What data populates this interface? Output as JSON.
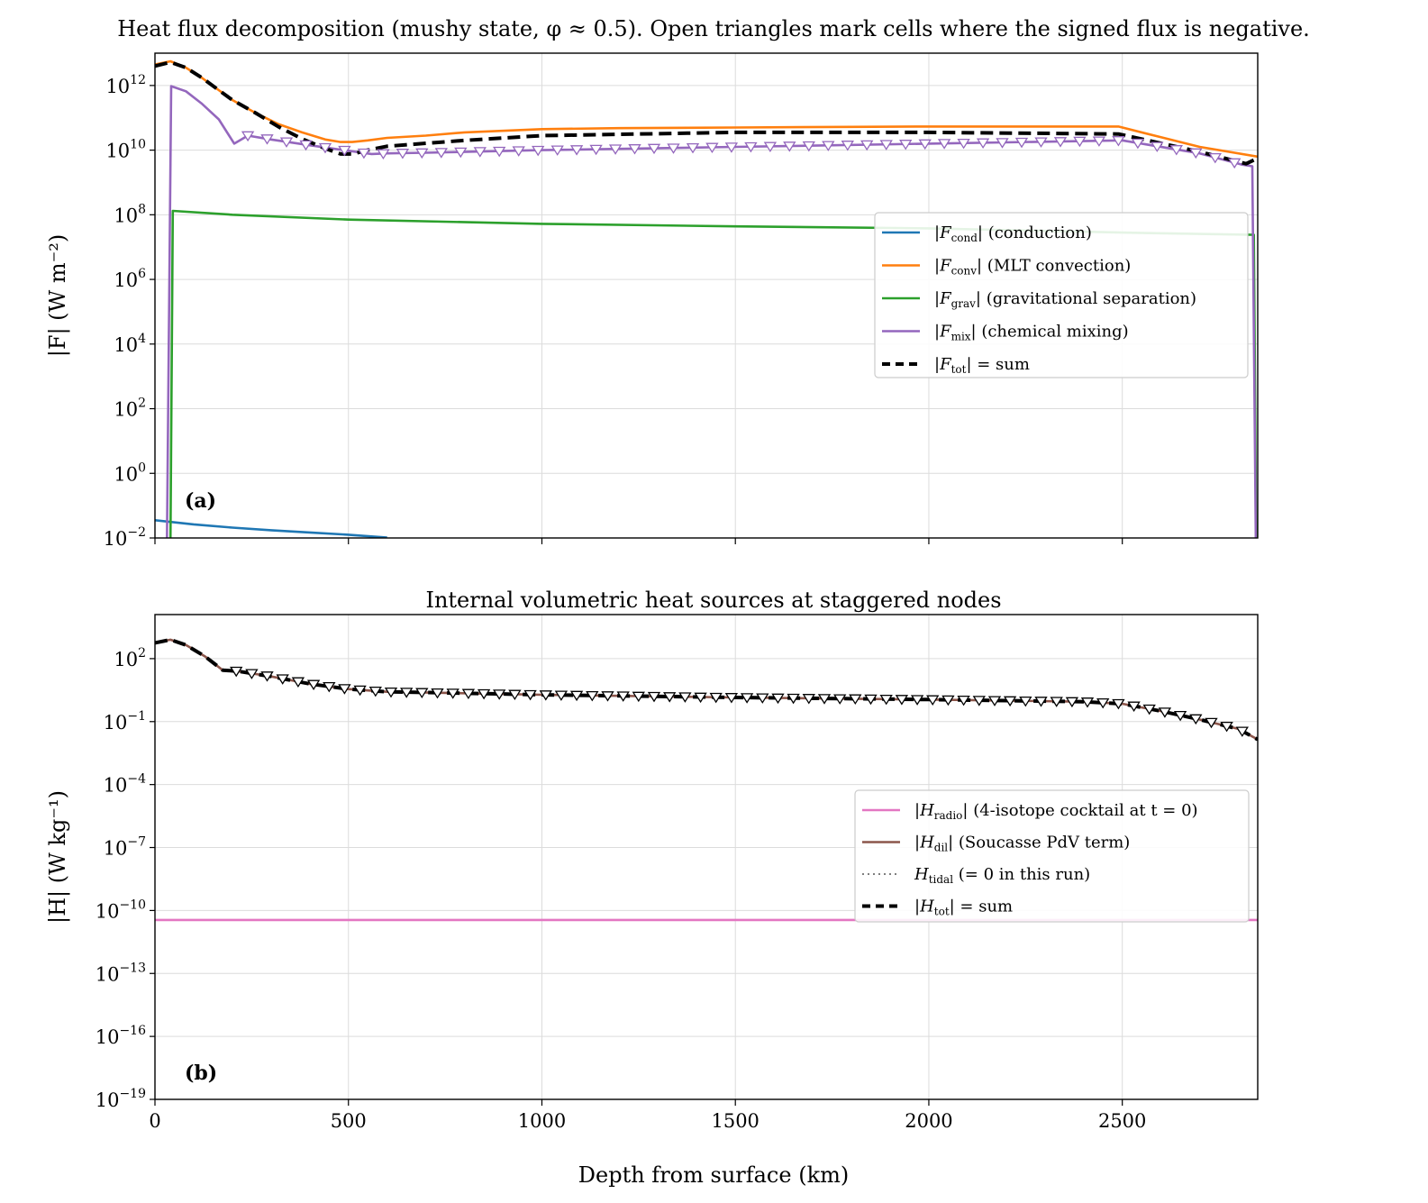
{
  "figure": {
    "title_a": "Heat flux decomposition  (mushy state, φ ≈ 0.5).  Open triangles mark cells where the signed flux is negative.",
    "title_b": "Internal volumetric heat sources at staggered nodes",
    "xlabel": "Depth from surface (km)",
    "colors": {
      "cond": "#1f77b4",
      "conv": "#ff7f0e",
      "grav": "#2ca02c",
      "mix": "#9467bd",
      "tot": "#000000",
      "radio": "#e377c2",
      "dil": "#8c564b",
      "tidal": "#7f7f7f"
    }
  },
  "chart_data": [
    {
      "type": "line",
      "panel_label": "(a)",
      "ylabel": "|F|  (W m⁻²)",
      "yscale": "log",
      "xlim": [
        0,
        2850
      ],
      "ylim_exp": [
        -2,
        13
      ],
      "xticks": [
        0,
        500,
        1000,
        1500,
        2000,
        2500
      ],
      "yticks_exp": [
        -2,
        0,
        2,
        4,
        6,
        8,
        10,
        12
      ],
      "grid": true,
      "legend_position": "center-right",
      "legend": [
        {
          "sym": "|F",
          "sub": "cond",
          "post": "|  (conduction)"
        },
        {
          "sym": "|F",
          "sub": "conv",
          "post": "|  (MLT convection)"
        },
        {
          "sym": "|F",
          "sub": "grav",
          "post": "|  (gravitational separation)"
        },
        {
          "sym": "|F",
          "sub": "mix",
          "post": "|  (chemical mixing)"
        },
        {
          "sym": "|F",
          "sub": "tot",
          "post": "|  = sum"
        }
      ],
      "series": [
        {
          "key": "cond",
          "style": "solid",
          "x": [
            0,
            100,
            200,
            300,
            400,
            500,
            600
          ],
          "log10_y": [
            -1.45,
            -1.58,
            -1.68,
            -1.76,
            -1.83,
            -1.9,
            -1.99
          ]
        },
        {
          "key": "conv",
          "style": "solid",
          "x": [
            0,
            40,
            80,
            120,
            160,
            200,
            260,
            320,
            380,
            440,
            480,
            510,
            550,
            600,
            700,
            800,
            1000,
            1200,
            1500,
            1800,
            2000,
            2200,
            2490,
            2600,
            2700,
            2850
          ],
          "log10_y": [
            12.65,
            12.75,
            12.55,
            12.25,
            11.9,
            11.55,
            11.15,
            10.8,
            10.55,
            10.33,
            10.25,
            10.25,
            10.3,
            10.38,
            10.45,
            10.55,
            10.65,
            10.68,
            10.7,
            10.72,
            10.73,
            10.73,
            10.73,
            10.4,
            10.1,
            9.8
          ]
        },
        {
          "key": "grav",
          "style": "solid",
          "x": [
            40,
            46,
            200,
            500,
            1000,
            1500,
            2000,
            2500,
            2840,
            2846
          ],
          "log10_y": [
            -2.1,
            8.12,
            8.0,
            7.85,
            7.72,
            7.64,
            7.58,
            7.45,
            7.38,
            -2.1
          ]
        },
        {
          "key": "mix",
          "style": "solid",
          "x": [
            31,
            42,
            80,
            120,
            165,
            205,
            240,
            300,
            400,
            500,
            560,
            600,
            700,
            1000,
            1500,
            2000,
            2500,
            2700,
            2810,
            2836,
            2845
          ],
          "log10_y": [
            -2.1,
            11.98,
            11.82,
            11.45,
            10.95,
            10.2,
            10.45,
            10.33,
            10.15,
            9.98,
            9.88,
            9.9,
            9.92,
            10.0,
            10.1,
            10.2,
            10.3,
            9.9,
            9.55,
            9.5,
            -2.1
          ]
        },
        {
          "key": "tot",
          "style": "dashed",
          "x": [
            0,
            40,
            80,
            120,
            160,
            200,
            260,
            320,
            380,
            440,
            480,
            510,
            550,
            600,
            800,
            1000,
            1500,
            2000,
            2490,
            2700,
            2820,
            2850
          ],
          "log10_y": [
            12.6,
            12.72,
            12.55,
            12.25,
            11.9,
            11.55,
            11.15,
            10.72,
            10.35,
            10.05,
            9.88,
            9.88,
            10.0,
            10.12,
            10.3,
            10.45,
            10.55,
            10.55,
            10.5,
            9.95,
            9.58,
            9.75
          ]
        }
      ],
      "negative_markers": {
        "color_key": "mix",
        "x": [
          240,
          290,
          340,
          390,
          440,
          490,
          540,
          590,
          640,
          690,
          740,
          790,
          840,
          890,
          940,
          990,
          1040,
          1090,
          1140,
          1190,
          1240,
          1290,
          1340,
          1390,
          1440,
          1490,
          1540,
          1590,
          1640,
          1690,
          1740,
          1790,
          1840,
          1890,
          1940,
          1990,
          2040,
          2090,
          2140,
          2190,
          2240,
          2290,
          2340,
          2390,
          2440,
          2490,
          2540,
          2590,
          2640,
          2690,
          2740,
          2790
        ]
      }
    },
    {
      "type": "line",
      "panel_label": "(b)",
      "ylabel": "|H|  (W kg⁻¹)",
      "yscale": "log",
      "xlim": [
        0,
        2850
      ],
      "ylim_exp": [
        -19,
        4.1
      ],
      "xticks": [
        0,
        500,
        1000,
        1500,
        2000,
        2500
      ],
      "yticks_exp": [
        -19,
        -16,
        -13,
        -10,
        -7,
        -4,
        -1,
        2
      ],
      "grid": true,
      "legend_position": "center-right",
      "legend": [
        {
          "sym": "|H",
          "sub": "radio",
          "post": "|  (4-isotope cocktail at t = 0)"
        },
        {
          "sym": "|H",
          "sub": "dil",
          "post": "|  (Soucasse PdV term)"
        },
        {
          "sym": "H",
          "sub": "tidal",
          "post": " (= 0 in this run)"
        },
        {
          "sym": "|H",
          "sub": "tot",
          "post": "|  = sum"
        }
      ],
      "series": [
        {
          "key": "radio",
          "style": "solid",
          "x": [
            0,
            2850
          ],
          "log10_y": [
            -10.45,
            -10.45
          ]
        },
        {
          "key": "dil",
          "style": "solid",
          "x": [
            0,
            40,
            80,
            130,
            175,
            215,
            300,
            400,
            500,
            600,
            800,
            1000,
            1500,
            2000,
            2400,
            2500,
            2600,
            2700,
            2800,
            2850
          ],
          "log10_y": [
            2.75,
            2.9,
            2.65,
            2.1,
            1.45,
            1.4,
            1.15,
            0.8,
            0.55,
            0.42,
            0.35,
            0.28,
            0.15,
            0.05,
            -0.05,
            -0.15,
            -0.5,
            -0.9,
            -1.35,
            -1.85
          ]
        },
        {
          "key": "tot",
          "style": "dashed",
          "x": [
            0,
            40,
            80,
            130,
            175,
            215,
            300,
            400,
            500,
            600,
            800,
            1000,
            1500,
            2000,
            2400,
            2500,
            2600,
            2700,
            2800,
            2850
          ],
          "log10_y": [
            2.75,
            2.9,
            2.65,
            2.1,
            1.45,
            1.4,
            1.15,
            0.8,
            0.55,
            0.42,
            0.35,
            0.28,
            0.15,
            0.05,
            -0.05,
            -0.15,
            -0.5,
            -0.9,
            -1.35,
            -1.85
          ]
        }
      ],
      "negative_markers": {
        "color_key": "tot",
        "x": [
          210,
          250,
          290,
          330,
          370,
          410,
          450,
          490,
          530,
          570,
          610,
          650,
          690,
          730,
          770,
          810,
          850,
          890,
          930,
          970,
          1010,
          1050,
          1090,
          1130,
          1170,
          1210,
          1250,
          1290,
          1330,
          1370,
          1410,
          1450,
          1490,
          1530,
          1570,
          1610,
          1650,
          1690,
          1730,
          1770,
          1810,
          1850,
          1890,
          1930,
          1970,
          2010,
          2050,
          2090,
          2130,
          2170,
          2210,
          2250,
          2290,
          2330,
          2370,
          2410,
          2450,
          2490,
          2530,
          2570,
          2610,
          2650,
          2690,
          2730,
          2770,
          2810
        ]
      }
    }
  ]
}
